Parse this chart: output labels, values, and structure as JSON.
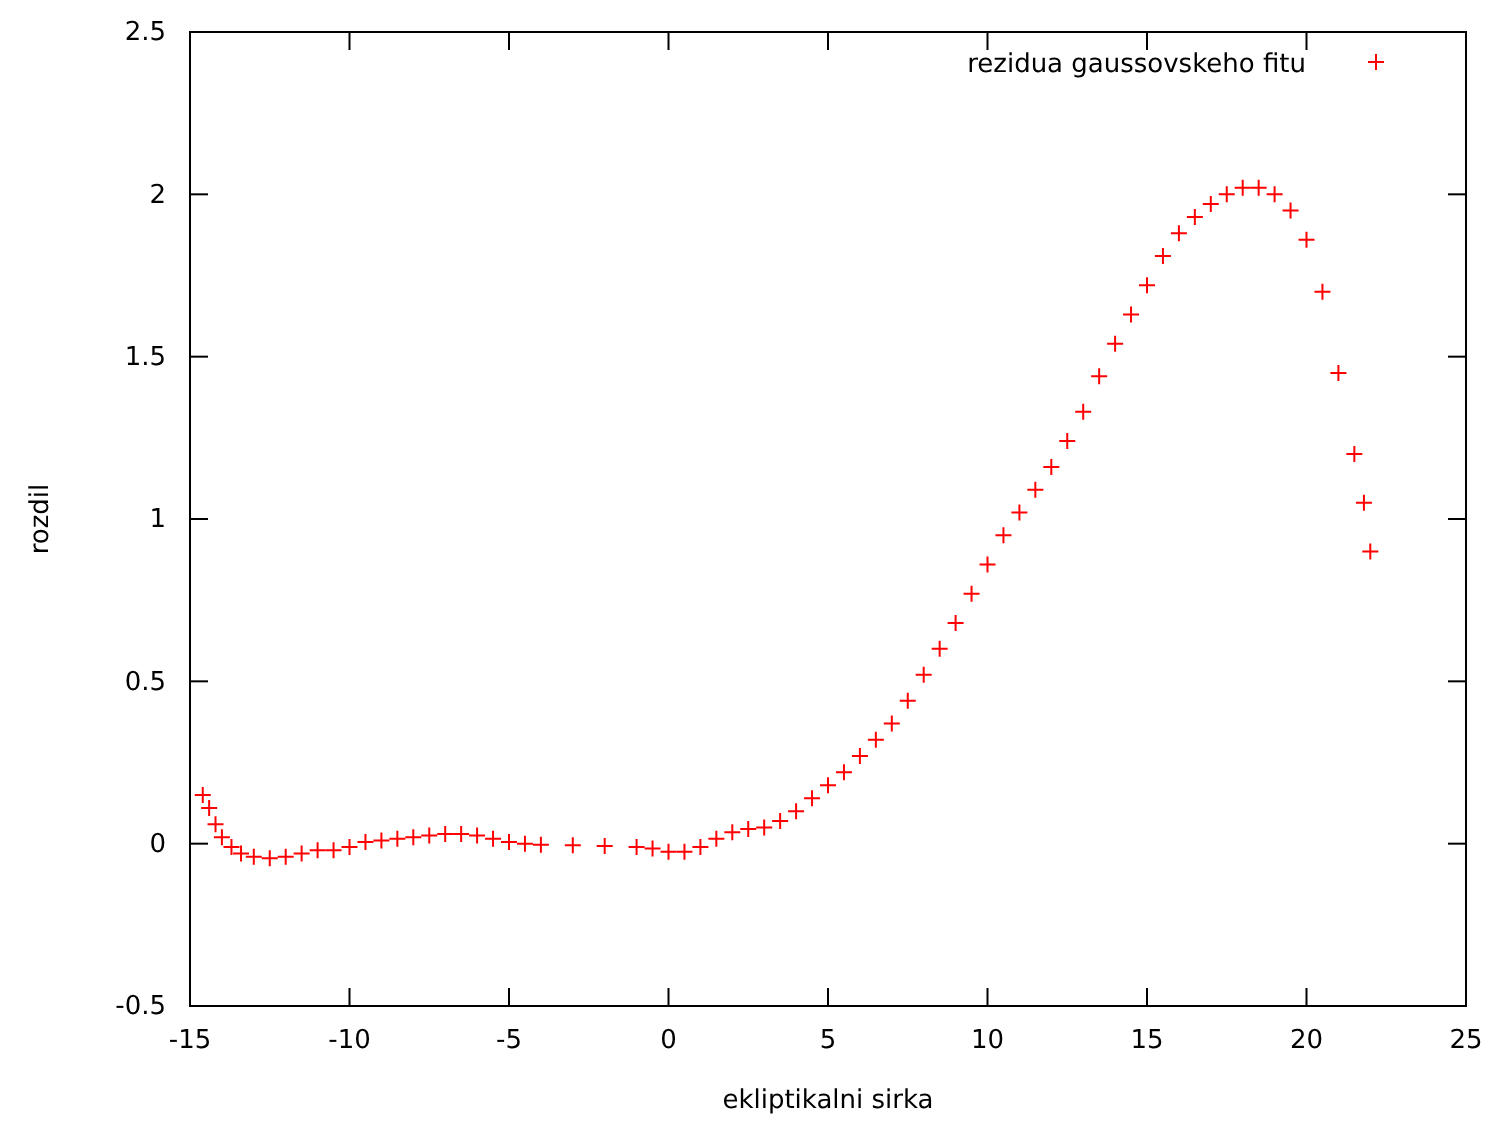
{
  "chart_data": {
    "type": "scatter",
    "xlabel": "ekliptikalni sirka",
    "ylabel": "rozdil",
    "xlim": [
      -15,
      25
    ],
    "ylim": [
      -0.5,
      2.5
    ],
    "xticks": [
      -15,
      -10,
      -5,
      0,
      5,
      10,
      15,
      20,
      25
    ],
    "yticks": [
      -0.5,
      0,
      0.5,
      1,
      1.5,
      2,
      2.5
    ],
    "grid": false,
    "legend": "top right",
    "marker": "cross",
    "series": [
      {
        "name": "rezidua gaussovskeho fitu",
        "color": "#ff0000",
        "x": [
          -14.6,
          -14.4,
          -14.2,
          -14.0,
          -13.7,
          -13.4,
          -13.0,
          -12.5,
          -12.0,
          -11.5,
          -11.0,
          -10.5,
          -10.0,
          -9.5,
          -9.0,
          -8.5,
          -8.0,
          -7.5,
          -7.0,
          -6.5,
          -6.0,
          -5.5,
          -5.0,
          -4.5,
          -4.0,
          -3.0,
          -2.0,
          -1.0,
          -0.5,
          0.0,
          0.5,
          1.0,
          1.5,
          2.0,
          2.5,
          3.0,
          3.5,
          4.0,
          4.5,
          5.0,
          5.5,
          6.0,
          6.5,
          7.0,
          7.5,
          8.0,
          8.5,
          9.0,
          9.5,
          10.0,
          10.5,
          11.0,
          11.5,
          12.0,
          12.5,
          13.0,
          13.5,
          14.0,
          14.5,
          15.0,
          15.5,
          16.0,
          16.5,
          17.0,
          17.5,
          18.0,
          18.5,
          19.0,
          19.5,
          20.0,
          20.5,
          21.0,
          21.5,
          21.8,
          22.0
        ],
        "values": [
          0.15,
          0.11,
          0.06,
          0.02,
          -0.01,
          -0.03,
          -0.04,
          -0.045,
          -0.04,
          -0.03,
          -0.02,
          -0.02,
          -0.01,
          0.005,
          0.01,
          0.015,
          0.02,
          0.025,
          0.03,
          0.03,
          0.025,
          0.015,
          0.005,
          0.0,
          -0.003,
          -0.005,
          -0.007,
          -0.01,
          -0.015,
          -0.025,
          -0.025,
          -0.01,
          0.015,
          0.035,
          0.045,
          0.05,
          0.07,
          0.1,
          0.14,
          0.18,
          0.22,
          0.27,
          0.32,
          0.37,
          0.44,
          0.52,
          0.6,
          0.68,
          0.77,
          0.86,
          0.95,
          1.02,
          1.09,
          1.16,
          1.24,
          1.33,
          1.44,
          1.54,
          1.63,
          1.72,
          1.81,
          1.88,
          1.93,
          1.97,
          2.0,
          2.02,
          2.02,
          2.0,
          1.95,
          1.86,
          1.7,
          1.45,
          1.2,
          1.05,
          0.9
        ]
      }
    ]
  }
}
